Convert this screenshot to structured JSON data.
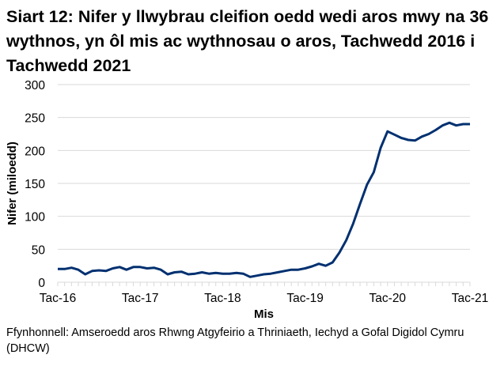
{
  "chart_data": {
    "type": "line",
    "title": "Siart 12: Nifer y llwybrau cleifion oedd wedi aros mwy na 36 wythnos, yn ôl mis ac wythnosau o aros, Tachwedd 2016 i Tachwedd 2021",
    "xlabel": "Mis",
    "ylabel": "Nifer (miloedd)",
    "ylim": [
      0,
      300
    ],
    "yticks": [
      "0",
      "50",
      "100",
      "150",
      "200",
      "250",
      "300"
    ],
    "xtick_labels": [
      "Tac-16",
      "Tac-17",
      "Tac-18",
      "Tac-19",
      "Tac-20",
      "Tac-21"
    ],
    "grid": true,
    "line_color": "#003070",
    "values": [
      20,
      20,
      22,
      19,
      12,
      17,
      18,
      17,
      21,
      23,
      19,
      23,
      23,
      21,
      22,
      19,
      12,
      15,
      16,
      12,
      13,
      15,
      13,
      14,
      13,
      13,
      14,
      13,
      8,
      10,
      12,
      13,
      15,
      17,
      19,
      19,
      21,
      24,
      28,
      25,
      30,
      45,
      64,
      89,
      119,
      148,
      167,
      204,
      229,
      224,
      219,
      216,
      215,
      221,
      225,
      231,
      238,
      242,
      238,
      240,
      240
    ]
  },
  "source": "Ffynhonnell: Amseroedd aros Rhwng Atgyfeirio a Thriniaeth, Iechyd a Gofal Digidol Cymru (DHCW)"
}
